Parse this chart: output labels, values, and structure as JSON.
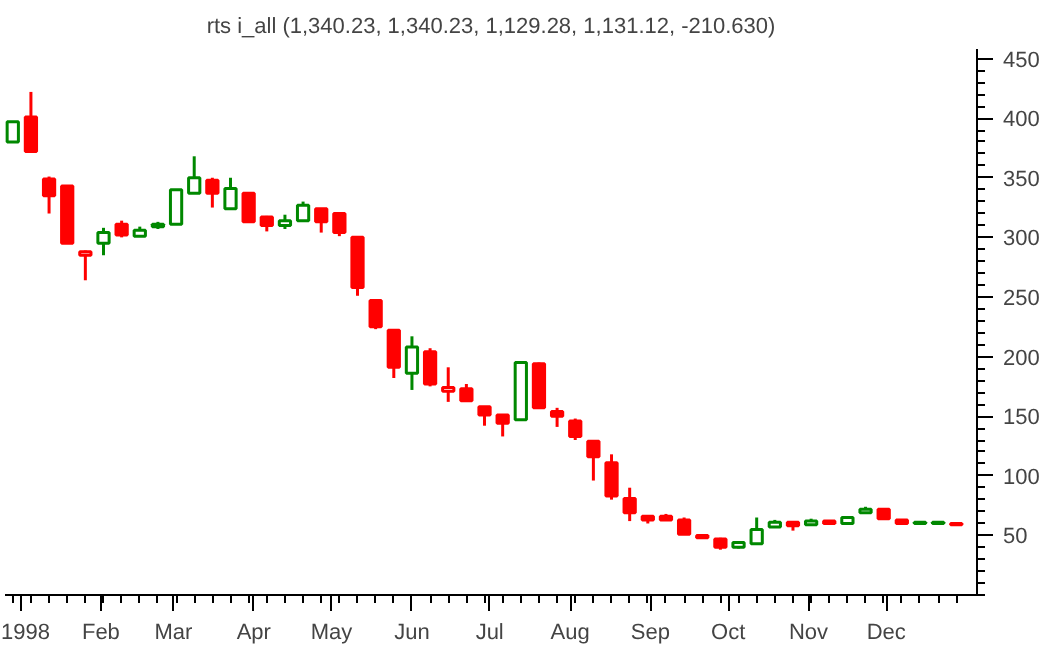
{
  "chart_data": {
    "type": "candlestick",
    "title": "rts i_all (1,340.23, 1,340.23, 1,129.28, 1,131.12, -210.630)",
    "x": [
      "1997-12-29",
      "1998-01-05",
      "1998-01-12",
      "1998-01-19",
      "1998-01-26",
      "1998-02-02",
      "1998-02-09",
      "1998-02-16",
      "1998-02-23",
      "1998-03-02",
      "1998-03-09",
      "1998-03-16",
      "1998-03-23",
      "1998-03-30",
      "1998-04-06",
      "1998-04-13",
      "1998-04-20",
      "1998-04-27",
      "1998-05-04",
      "1998-05-11",
      "1998-05-18",
      "1998-05-25",
      "1998-06-01",
      "1998-06-08",
      "1998-06-15",
      "1998-06-22",
      "1998-06-29",
      "1998-07-06",
      "1998-07-13",
      "1998-07-20",
      "1998-07-27",
      "1998-08-03",
      "1998-08-10",
      "1998-08-17",
      "1998-08-24",
      "1998-08-31",
      "1998-09-07",
      "1998-09-14",
      "1998-09-21",
      "1998-09-28",
      "1998-10-05",
      "1998-10-12",
      "1998-10-19",
      "1998-10-26",
      "1998-11-02",
      "1998-11-09",
      "1998-11-16",
      "1998-11-23",
      "1998-11-30",
      "1998-12-07",
      "1998-12-14",
      "1998-12-21",
      "1998-12-28"
    ],
    "ohlc": [
      [
        380,
        397,
        380,
        397
      ],
      [
        401,
        422,
        372,
        372
      ],
      [
        349,
        351,
        320,
        335
      ],
      [
        343,
        343,
        295,
        295
      ],
      [
        285,
        289,
        264,
        288
      ],
      [
        295,
        308,
        285,
        304
      ],
      [
        311,
        314,
        300,
        302
      ],
      [
        301,
        309,
        301,
        306
      ],
      [
        309,
        313,
        307,
        311
      ],
      [
        311,
        340,
        311,
        340
      ],
      [
        337,
        368,
        337,
        350
      ],
      [
        348,
        350,
        325,
        337
      ],
      [
        324,
        350,
        324,
        341
      ],
      [
        337,
        337,
        313,
        313
      ],
      [
        317,
        318,
        305,
        310
      ],
      [
        310,
        319,
        307,
        314
      ],
      [
        314,
        330,
        314,
        327
      ],
      [
        324,
        324,
        304,
        313
      ],
      [
        320,
        320,
        301,
        304
      ],
      [
        300,
        300,
        251,
        258
      ],
      [
        247,
        247,
        223,
        225
      ],
      [
        222,
        222,
        182,
        191
      ],
      [
        186,
        217,
        172,
        208
      ],
      [
        204,
        207,
        175,
        177
      ],
      [
        171,
        191,
        162,
        174
      ],
      [
        173,
        177,
        163,
        163
      ],
      [
        158,
        158,
        142,
        151
      ],
      [
        151,
        151,
        133,
        144
      ],
      [
        147,
        195,
        147,
        195
      ],
      [
        194,
        195,
        157,
        157
      ],
      [
        154,
        157,
        141,
        150
      ],
      [
        146,
        148,
        130,
        133
      ],
      [
        129,
        129,
        96,
        116
      ],
      [
        111,
        118,
        80,
        83
      ],
      [
        81,
        90,
        62,
        69
      ],
      [
        66,
        66,
        60,
        63
      ],
      [
        66,
        68,
        63,
        63
      ],
      [
        63,
        65,
        51,
        51
      ],
      [
        50,
        50,
        48,
        48
      ],
      [
        47,
        48,
        38,
        40
      ],
      [
        40,
        44,
        39,
        44
      ],
      [
        43,
        65,
        43,
        55
      ],
      [
        57,
        63,
        57,
        61
      ],
      [
        61,
        61,
        54,
        58
      ],
      [
        59,
        64,
        59,
        62
      ],
      [
        62,
        62,
        60,
        60
      ],
      [
        60,
        65,
        60,
        65
      ],
      [
        69,
        74,
        69,
        72
      ],
      [
        72,
        72,
        64,
        64
      ],
      [
        63,
        63,
        60,
        60
      ],
      [
        60,
        61,
        60,
        61
      ],
      [
        60,
        61,
        60,
        61
      ],
      [
        60,
        60,
        59,
        59
      ]
    ],
    "colors": [
      "#008800",
      "#ff0000",
      "#ff0000",
      "#ff0000",
      "#ff0000",
      "#008800",
      "#ff0000",
      "#008800",
      "#008800",
      "#008800",
      "#008800",
      "#ff0000",
      "#008800",
      "#ff0000",
      "#ff0000",
      "#008800",
      "#008800",
      "#ff0000",
      "#ff0000",
      "#ff0000",
      "#ff0000",
      "#ff0000",
      "#008800",
      "#ff0000",
      "#ff0000",
      "#ff0000",
      "#ff0000",
      "#ff0000",
      "#008800",
      "#ff0000",
      "#ff0000",
      "#ff0000",
      "#ff0000",
      "#ff0000",
      "#ff0000",
      "#ff0000",
      "#ff0000",
      "#ff0000",
      "#ff0000",
      "#ff0000",
      "#008800",
      "#008800",
      "#008800",
      "#ff0000",
      "#008800",
      "#ff0000",
      "#008800",
      "#008800",
      "#ff0000",
      "#ff0000",
      "#008800",
      "#008800",
      "#ff0000"
    ],
    "xlim": [
      "1997-12-26",
      "1999-01-05"
    ],
    "xticks": [
      {
        "value": "1998-01-01",
        "label": "1998"
      },
      {
        "value": "1998-02-01",
        "label": "Feb"
      },
      {
        "value": "1998-03-01",
        "label": "Mar"
      },
      {
        "value": "1998-04-01",
        "label": "Apr"
      },
      {
        "value": "1998-05-01",
        "label": "May"
      },
      {
        "value": "1998-06-01",
        "label": "Jun"
      },
      {
        "value": "1998-07-01",
        "label": "Jul"
      },
      {
        "value": "1998-08-01",
        "label": "Aug"
      },
      {
        "value": "1998-09-01",
        "label": "Sep"
      },
      {
        "value": "1998-10-01",
        "label": "Oct"
      },
      {
        "value": "1998-11-01",
        "label": "Nov"
      },
      {
        "value": "1998-12-01",
        "label": "Dec"
      }
    ],
    "ylim": [
      0,
      458
    ],
    "yticks": [
      50,
      100,
      150,
      200,
      250,
      300,
      350,
      400,
      450
    ],
    "grid": false
  }
}
